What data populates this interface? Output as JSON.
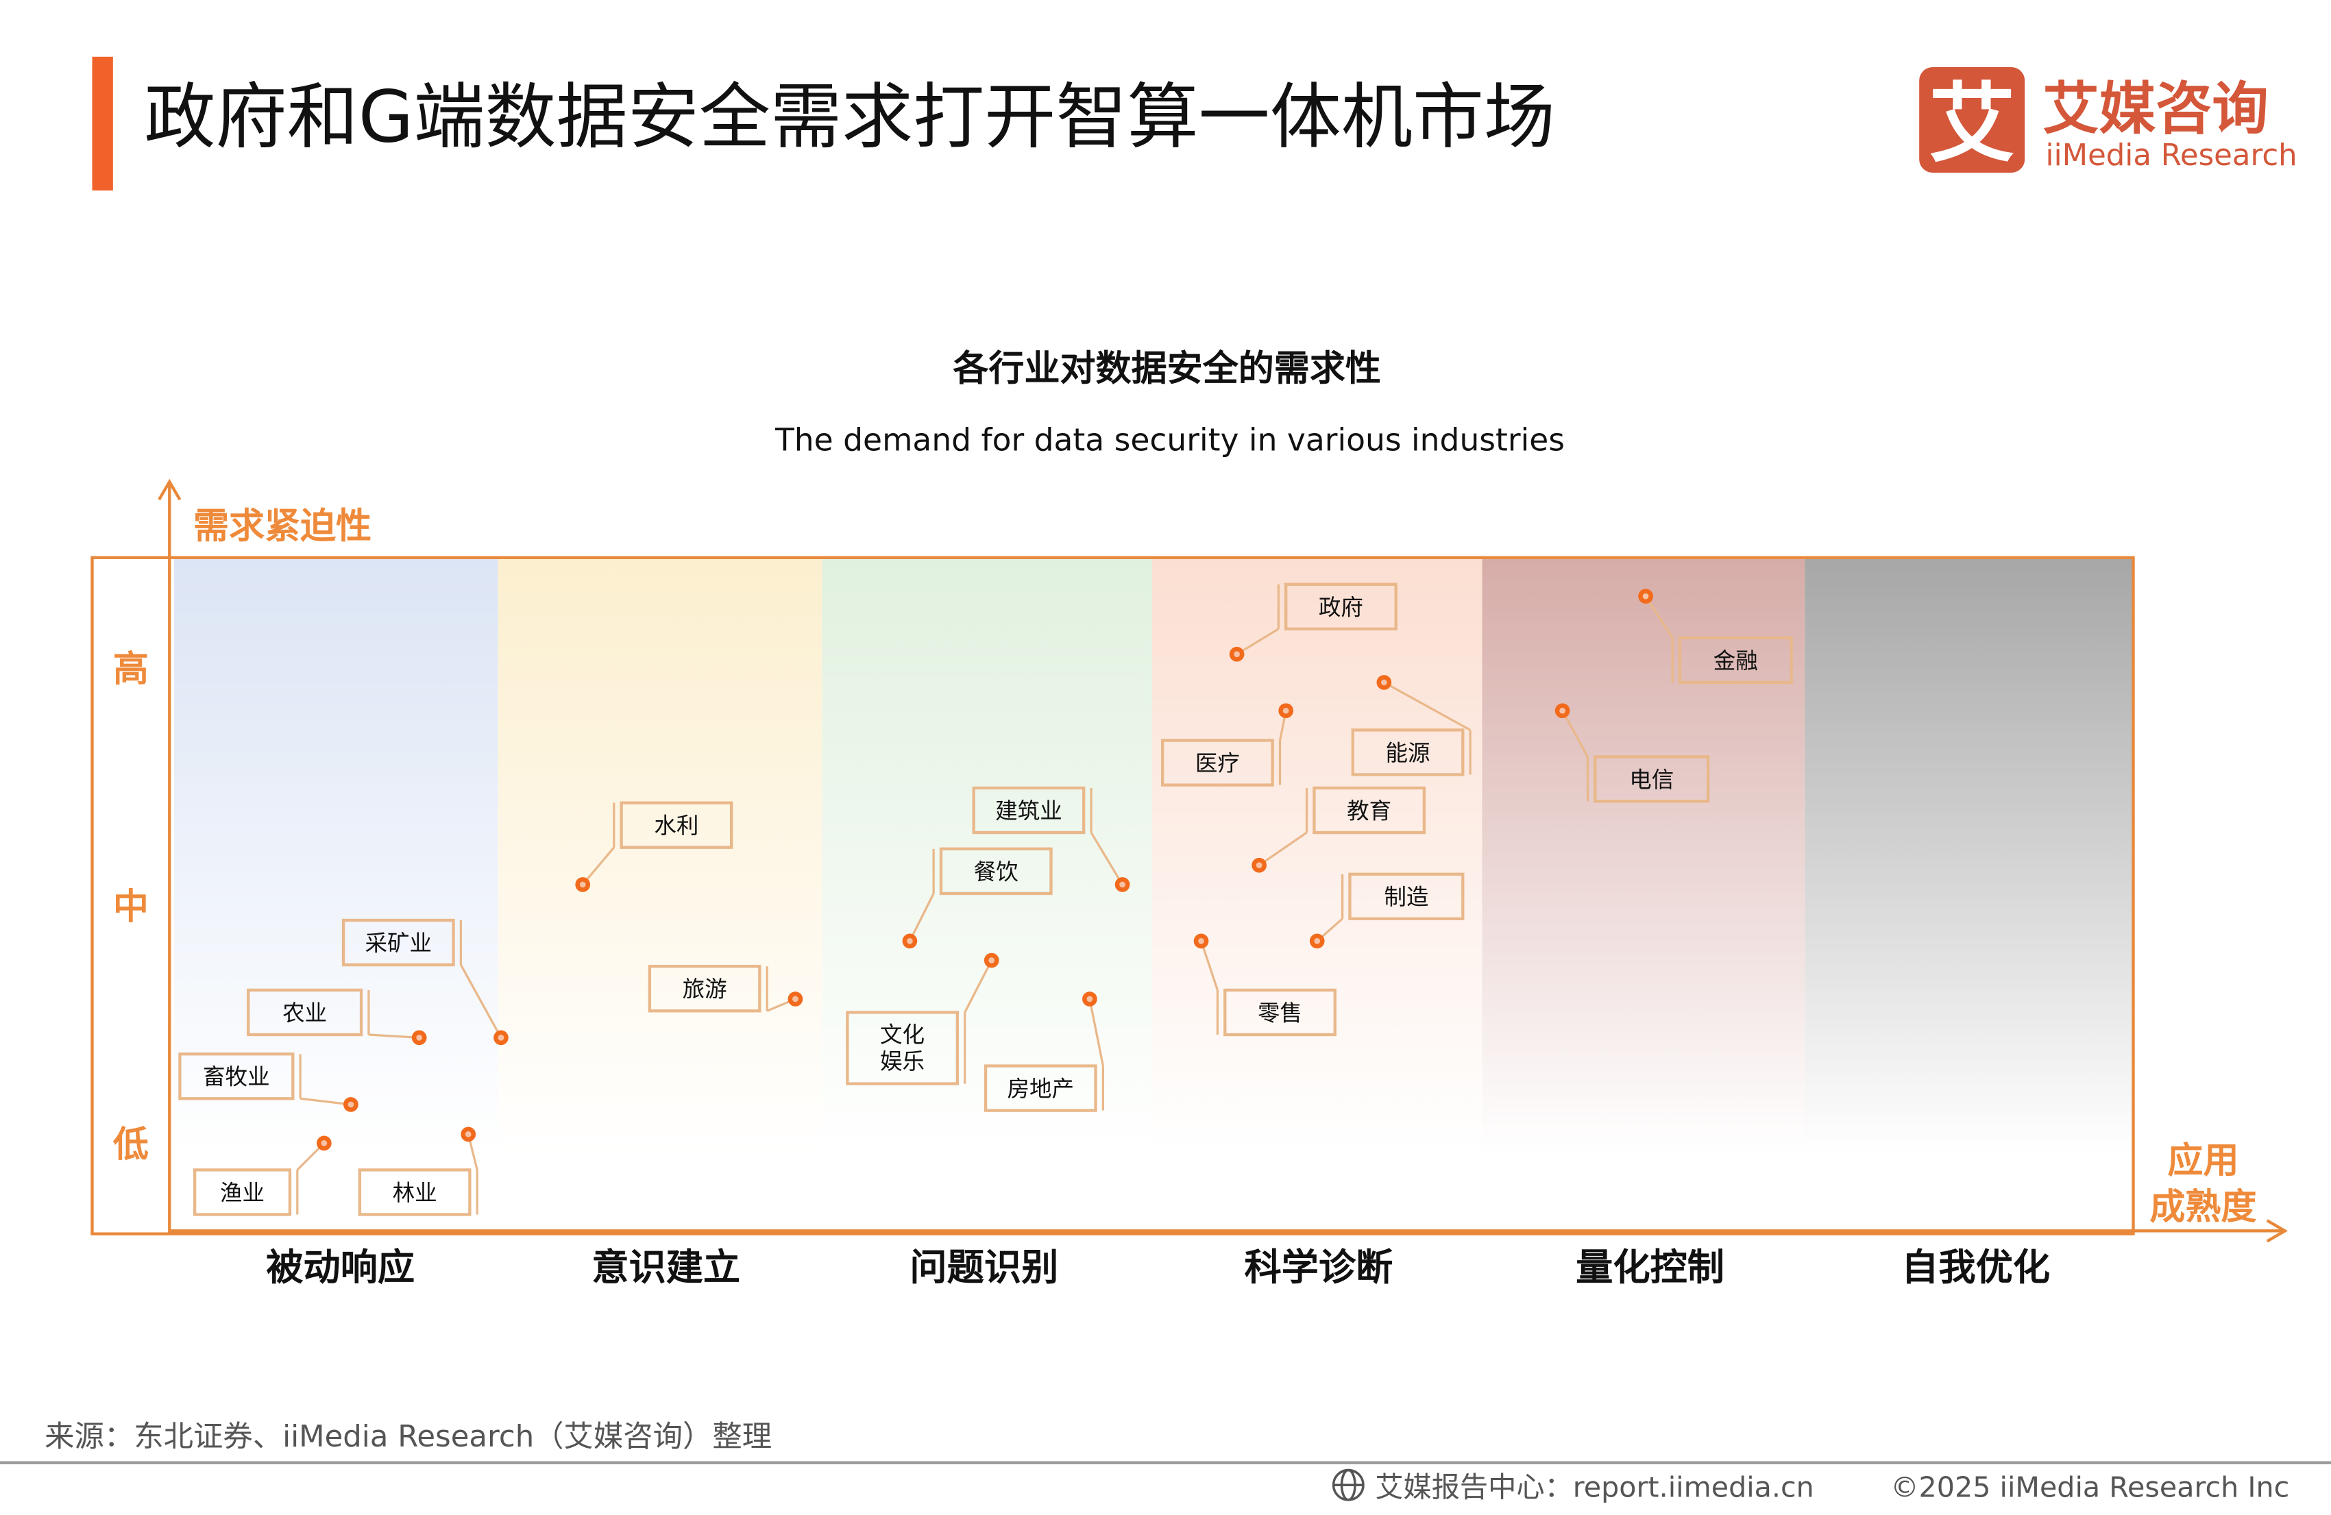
{
  "header": {
    "title": "政府和G端数据安全需求打开智算一体机市场",
    "logo_cn": "艾媒咨询",
    "logo_en": "iiMedia Research",
    "logo_glyph": "艾"
  },
  "chart": {
    "title_cn": "各行业对数据安全的需求性",
    "title_en": "The demand for data security in various industries",
    "y_axis_label": "需求紧迫性",
    "x_axis_label_line1": "应用",
    "x_axis_label_line2": "成熟度",
    "y_levels": [
      "高",
      "中",
      "低"
    ],
    "stages": [
      "被动响应",
      "意识建立",
      "问题识别",
      "科学诊断",
      "量化控制",
      "自我优化"
    ],
    "industries": [
      {
        "name": "采矿业",
        "stage": "被动响应"
      },
      {
        "name": "农业",
        "stage": "被动响应"
      },
      {
        "name": "畜牧业",
        "stage": "被动响应"
      },
      {
        "name": "渔业",
        "stage": "被动响应"
      },
      {
        "name": "林业",
        "stage": "被动响应"
      },
      {
        "name": "水利",
        "stage": "意识建立"
      },
      {
        "name": "旅游",
        "stage": "意识建立"
      },
      {
        "name": "建筑业",
        "stage": "问题识别"
      },
      {
        "name": "餐饮",
        "stage": "问题识别"
      },
      {
        "name": "文化娱乐",
        "stage": "问题识别"
      },
      {
        "name": "房地产",
        "stage": "问题识别"
      },
      {
        "name": "政府",
        "stage": "科学诊断"
      },
      {
        "name": "医疗",
        "stage": "科学诊断"
      },
      {
        "name": "能源",
        "stage": "科学诊断"
      },
      {
        "name": "教育",
        "stage": "科学诊断"
      },
      {
        "name": "制造",
        "stage": "科学诊断"
      },
      {
        "name": "零售",
        "stage": "科学诊断"
      },
      {
        "name": "金融",
        "stage": "量化控制"
      },
      {
        "name": "电信",
        "stage": "量化控制"
      }
    ],
    "colors": {
      "accent": "#f0622a",
      "axis": "#e8883a",
      "dot": "#f26a1b",
      "box": "#e9b88a",
      "stage_fills": [
        "#dce5f5",
        "#fcefcf",
        "#e1f1df",
        "#fbdfd2",
        "#d6aca8",
        "#a7a7a7"
      ]
    }
  },
  "footer": {
    "source": "来源：东北证券、iiMedia Research（艾媒咨询）整理",
    "report_center": "艾媒报告中心：report.iimedia.cn",
    "copyright": "©2025  iiMedia Research  Inc"
  }
}
